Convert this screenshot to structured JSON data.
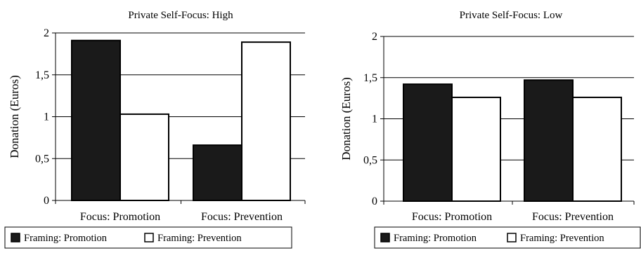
{
  "chart_data": [
    {
      "type": "bar",
      "title": "Private Self-Focus: High",
      "ylabel": "Donation (Euros)",
      "xlabel": "",
      "categories": [
        "Focus: Promotion",
        "Focus: Prevention"
      ],
      "series": [
        {
          "name": "Framing: Promotion",
          "values": [
            1.91,
            0.66
          ],
          "color": "#1a1a1a"
        },
        {
          "name": "Framing: Prevention",
          "values": [
            1.03,
            1.89
          ],
          "color": "#ffffff"
        }
      ],
      "ylim": [
        0,
        2
      ],
      "yticks": [
        "0",
        "0,5",
        "1",
        "1,5",
        "2"
      ],
      "grid": true,
      "legend_position": "bottom"
    },
    {
      "type": "bar",
      "title": "Private Self-Focus: Low",
      "ylabel": "Donation (Euros)",
      "xlabel": "",
      "categories": [
        "Focus: Promotion",
        "Focus: Prevention"
      ],
      "series": [
        {
          "name": "Framing: Promotion",
          "values": [
            1.42,
            1.47
          ],
          "color": "#1a1a1a"
        },
        {
          "name": "Framing: Prevention",
          "values": [
            1.26,
            1.26
          ],
          "color": "#ffffff"
        }
      ],
      "ylim": [
        0,
        2
      ],
      "yticks": [
        "0",
        "0,5",
        "1",
        "1,5",
        "2"
      ],
      "grid": true,
      "legend_position": "bottom"
    }
  ]
}
